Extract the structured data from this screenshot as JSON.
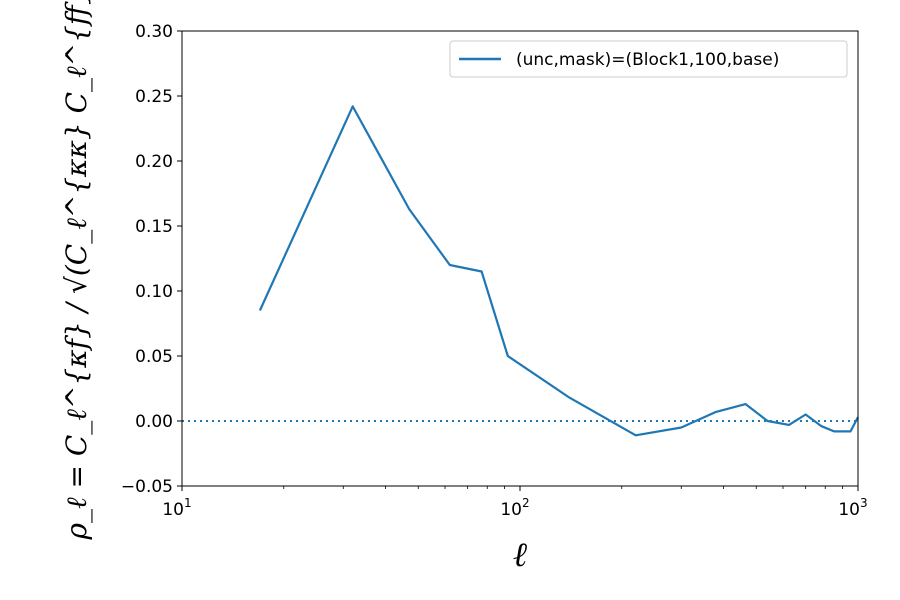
{
  "chart_data": {
    "type": "line",
    "xscale": "log",
    "xlim": [
      10,
      1000
    ],
    "ylim": [
      -0.05,
      0.3
    ],
    "xlabel": "ℓ",
    "ylabel": "ρ_ℓ = C_ℓ^{κf} / √(C_ℓ^{κκ} C_ℓ^{ff})",
    "x_ticks": [
      {
        "value": 10,
        "base": "10",
        "exp": "1"
      },
      {
        "value": 100,
        "base": "10",
        "exp": "2"
      },
      {
        "value": 1000,
        "base": "10",
        "exp": "3"
      }
    ],
    "y_ticks": [
      {
        "value": -0.05,
        "label": "−0.05"
      },
      {
        "value": 0.0,
        "label": "0.00"
      },
      {
        "value": 0.05,
        "label": "0.05"
      },
      {
        "value": 0.1,
        "label": "0.10"
      },
      {
        "value": 0.15,
        "label": "0.15"
      },
      {
        "value": 0.2,
        "label": "0.20"
      },
      {
        "value": 0.25,
        "label": "0.25"
      },
      {
        "value": 0.3,
        "label": "0.30"
      }
    ],
    "grid": false,
    "legend_position": "top-right",
    "reference_line": {
      "y": 0.0,
      "style": "dotted"
    },
    "series": [
      {
        "name": "(unc,mask)=(Block1,100,base)",
        "color": "#1f77b4",
        "x": [
          17,
          32,
          47,
          62,
          77,
          92,
          140,
          220,
          300,
          380,
          465,
          540,
          625,
          700,
          780,
          850,
          950,
          1000
        ],
        "y": [
          0.085,
          0.242,
          0.163,
          0.12,
          0.115,
          0.05,
          0.018,
          -0.011,
          -0.005,
          0.007,
          0.013,
          0.0,
          -0.003,
          0.005,
          -0.004,
          -0.008,
          -0.008,
          0.003
        ]
      }
    ]
  }
}
